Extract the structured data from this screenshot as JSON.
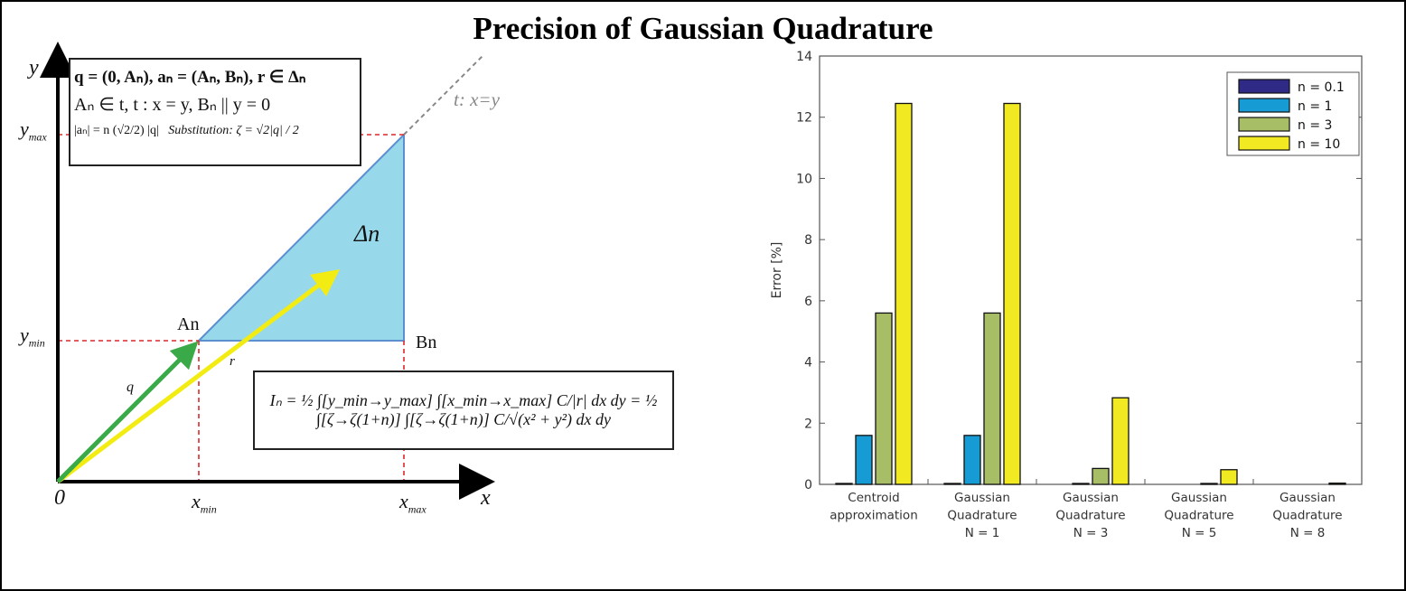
{
  "title": "Precision of Gaussian Quadrature",
  "diagram": {
    "axis_x": "x",
    "axis_y": "y",
    "origin": "0",
    "x_min": "x",
    "x_min_sub": "min",
    "x_max": "x",
    "x_max_sub": "max",
    "y_min": "y",
    "y_min_sub": "min",
    "y_max": "y",
    "y_max_sub": "max",
    "point_a": "An",
    "point_b": "Bn",
    "region": "Δn",
    "vector_q": "q",
    "vector_r": "r",
    "line_t": "t: x=y",
    "definitions": {
      "line1": "q = (0, Aₙ),   aₙ = (Aₙ, Bₙ),   r ∈ Δₙ",
      "line2": "Aₙ ∈ t,  t : x = y, Bₙ || y = 0",
      "line3a": "|aₙ| = n (√2/2) |q|",
      "line3b": "Substitution:  ζ = √2|q| / 2"
    },
    "integral": "Iₙ = ½ ∫[y_min→y_max] ∫[x_min→x_max] C/|r| dx dy = ½ ∫[ζ→ζ(1+n)] ∫[ζ→ζ(1+n)] C/√(x² + y²) dx dy"
  },
  "chart_data": {
    "type": "bar",
    "title": "",
    "ylabel": "Error [%]",
    "xlabel": "",
    "ylim": [
      0,
      14
    ],
    "yticks": [
      "0",
      "2",
      "4",
      "6",
      "8",
      "10",
      "12",
      "14"
    ],
    "categories": [
      [
        "Centroid",
        "approximation"
      ],
      [
        "Gaussian",
        "Quadrature",
        "N = 1"
      ],
      [
        "Gaussian",
        "Quadrature",
        "N = 3"
      ],
      [
        "Gaussian",
        "Quadrature",
        "N = 5"
      ],
      [
        "Gaussian",
        "Quadrature",
        "N = 8"
      ]
    ],
    "legend_position": "top-right",
    "series": [
      {
        "name": "n = 0.1",
        "color": "#2e2a86",
        "values": [
          0.03,
          0.03,
          0.0,
          0.0,
          0.0
        ]
      },
      {
        "name": "n = 1",
        "color": "#179bd4",
        "values": [
          1.6,
          1.6,
          0.03,
          0.0,
          0.0
        ]
      },
      {
        "name": "n = 3",
        "color": "#a7be67",
        "values": [
          5.6,
          5.6,
          0.52,
          0.03,
          0.0
        ]
      },
      {
        "name": "n = 10",
        "color": "#f1ea22",
        "values": [
          12.45,
          12.45,
          2.83,
          0.48,
          0.04
        ]
      }
    ]
  }
}
